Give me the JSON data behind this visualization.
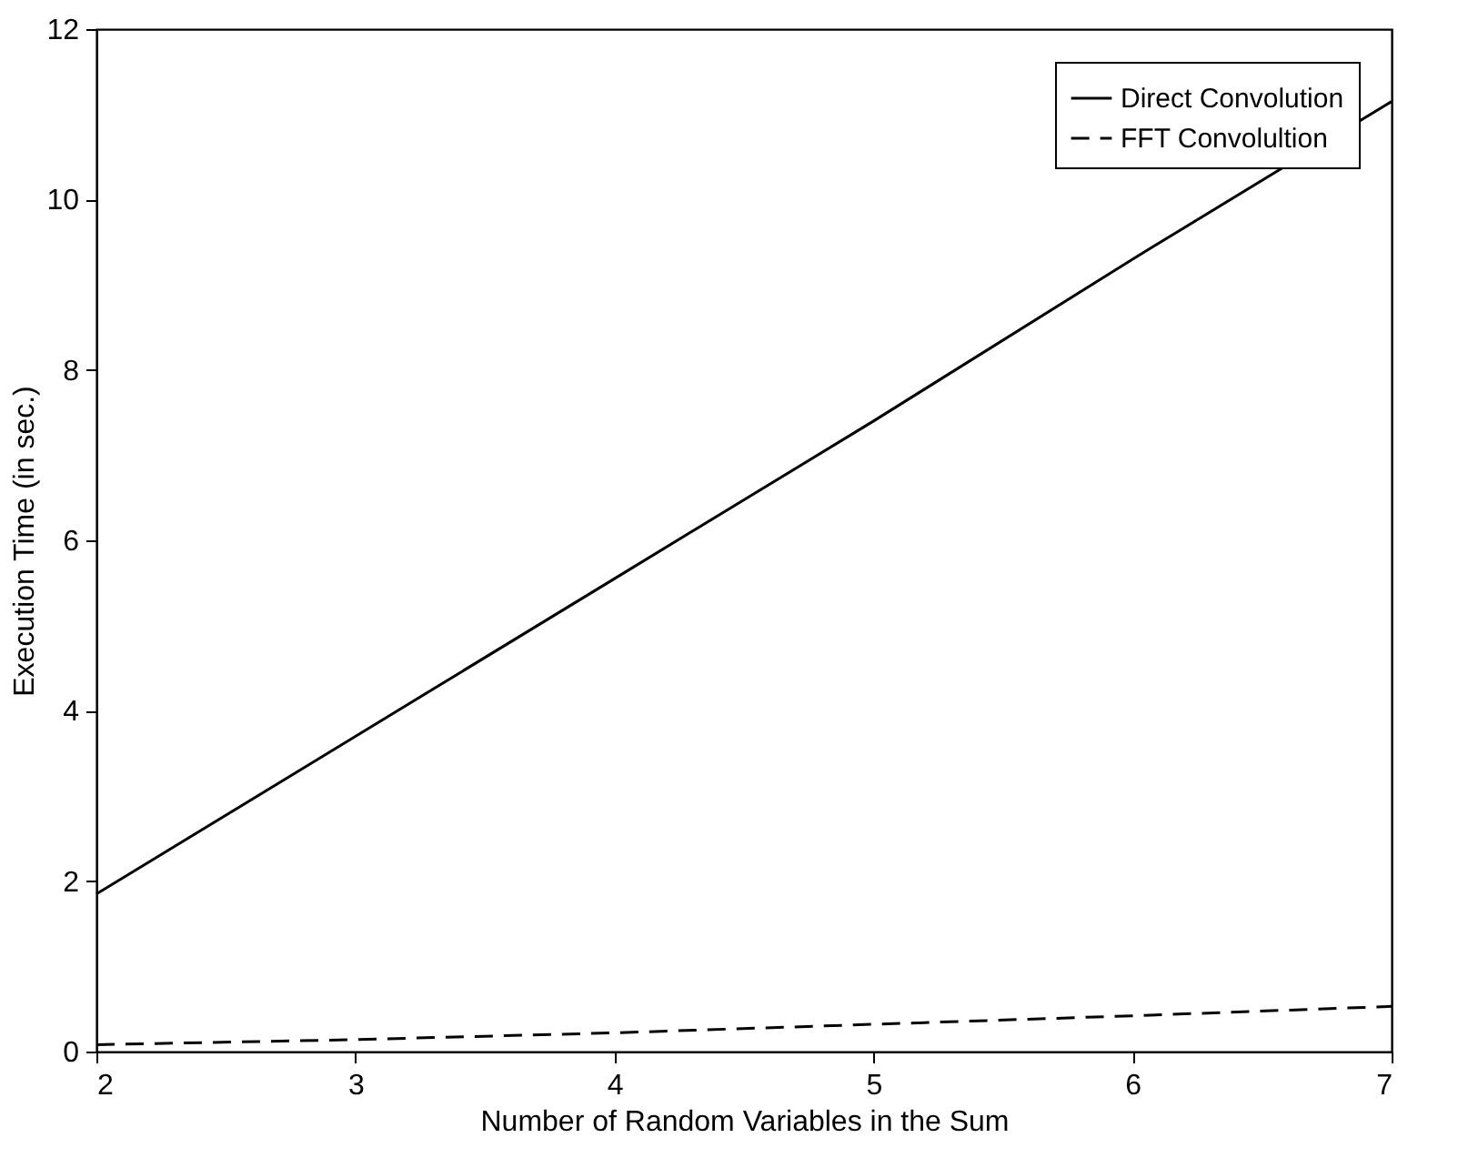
{
  "chart_data": {
    "type": "line",
    "xlabel": "Number of Random Variables in the Sum",
    "ylabel": "Execution Time (in sec.)",
    "x": [
      2,
      3,
      4,
      5,
      6,
      7
    ],
    "series": [
      {
        "name": "Direct Convolution",
        "color": "#000000",
        "line_style": "solid",
        "values": [
          1.85,
          3.7,
          5.55,
          7.4,
          9.3,
          11.15
        ]
      },
      {
        "name": "FFT Convolultion",
        "color": "#000000",
        "line_style": "dashed",
        "values": [
          0.08,
          0.14,
          0.22,
          0.32,
          0.42,
          0.53
        ]
      }
    ],
    "xlim": [
      2,
      7
    ],
    "xticks": [
      2,
      3,
      4,
      5,
      6,
      7
    ],
    "ylim": [
      0,
      12
    ],
    "yticks": [
      0,
      2,
      4,
      6,
      8,
      10,
      12
    ],
    "grid": false,
    "legend": "top right",
    "marker": "none"
  }
}
